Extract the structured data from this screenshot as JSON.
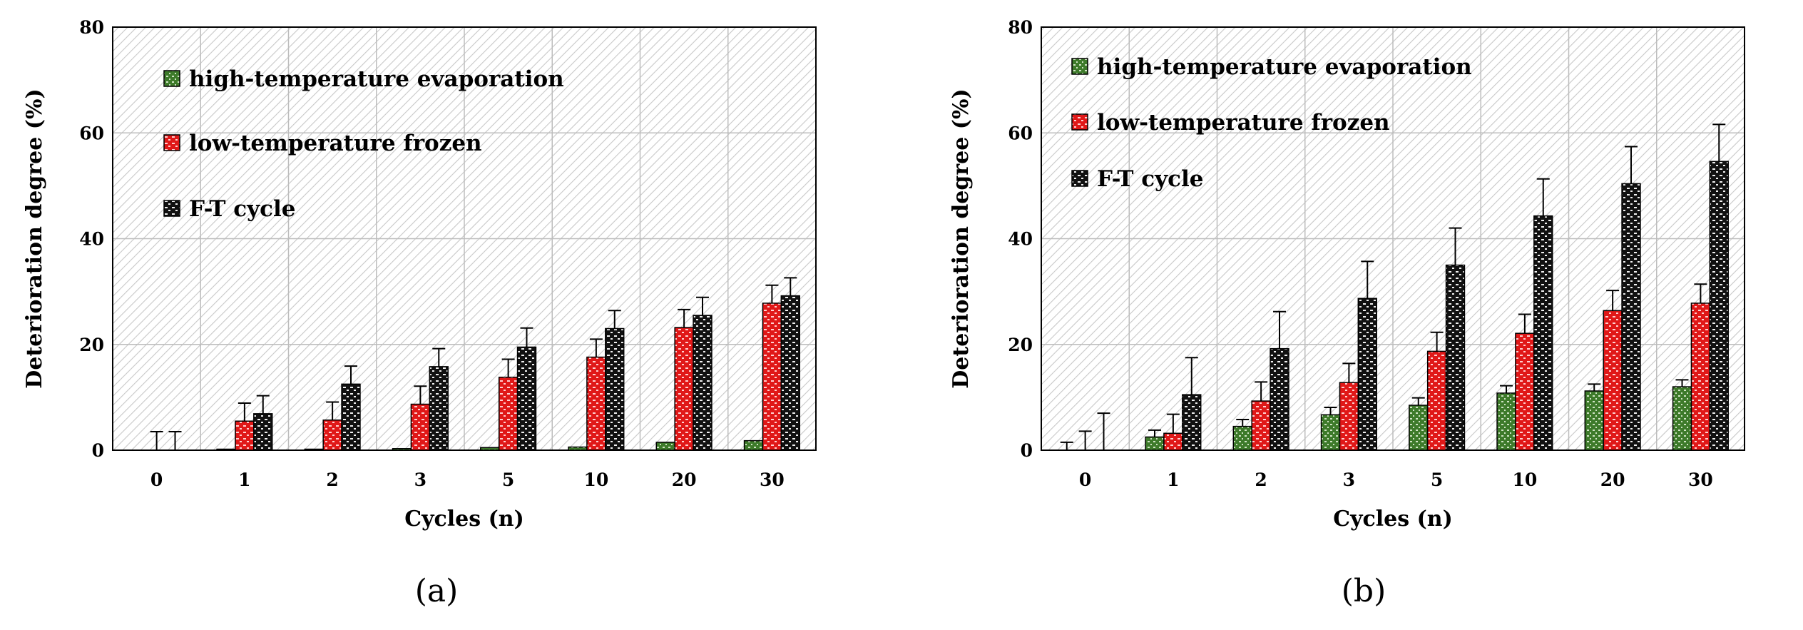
{
  "chart_data": [
    {
      "type": "bar",
      "panel_label": "(a)",
      "xlabel": "Cycles (n)",
      "ylabel": "Deterioration degree (%)",
      "ylim": [
        0,
        80
      ],
      "yticks": [
        0,
        20,
        40,
        60,
        80
      ],
      "categories": [
        "0",
        "1",
        "2",
        "3",
        "5",
        "10",
        "20",
        "30"
      ],
      "grid": true,
      "legend_position": "top-left",
      "series": [
        {
          "name": "high-temperature evaporation",
          "color": "#3d7a2a",
          "values": [
            0,
            0.2,
            0.2,
            0.3,
            0.5,
            0.6,
            1.5,
            1.8
          ],
          "errors": [
            0,
            0,
            0,
            0,
            0,
            0,
            0,
            0
          ]
        },
        {
          "name": "low-temperature frozen",
          "color": "#e01818",
          "values": [
            0,
            5.5,
            5.7,
            8.7,
            13.8,
            17.6,
            23.2,
            27.8
          ],
          "errors": [
            3.5,
            3.4,
            3.4,
            3.4,
            3.4,
            3.4,
            3.4,
            3.4
          ]
        },
        {
          "name": "F-T cycle",
          "color": "#111111",
          "values": [
            0,
            6.9,
            12.5,
            15.8,
            19.5,
            23.0,
            25.5,
            29.2
          ],
          "errors": [
            3.5,
            3.4,
            3.4,
            3.4,
            3.6,
            3.4,
            3.4,
            3.4
          ]
        }
      ]
    },
    {
      "type": "bar",
      "panel_label": "(b)",
      "xlabel": "Cycles (n)",
      "ylabel": "Deterioration degree (%)",
      "ylim": [
        0,
        80
      ],
      "yticks": [
        0,
        20,
        40,
        60,
        80
      ],
      "categories": [
        "0",
        "1",
        "2",
        "3",
        "5",
        "10",
        "20",
        "30"
      ],
      "grid": true,
      "legend_position": "top-left",
      "series": [
        {
          "name": "high-temperature evaporation",
          "color": "#3d7a2a",
          "values": [
            0,
            2.5,
            4.5,
            6.7,
            8.5,
            10.8,
            11.2,
            12.0
          ],
          "errors": [
            1.5,
            1.3,
            1.3,
            1.4,
            1.4,
            1.4,
            1.3,
            1.3
          ]
        },
        {
          "name": "low-temperature frozen",
          "color": "#e01818",
          "values": [
            0,
            3.2,
            9.3,
            12.8,
            18.7,
            22.1,
            26.4,
            27.8
          ],
          "errors": [
            3.6,
            3.6,
            3.6,
            3.6,
            3.6,
            3.6,
            3.8,
            3.6
          ]
        },
        {
          "name": "F-T cycle",
          "color": "#111111",
          "values": [
            0,
            10.5,
            19.2,
            28.7,
            35.0,
            44.3,
            50.4,
            54.6
          ],
          "errors": [
            7.0,
            7.0,
            7.0,
            7.0,
            7.0,
            7.0,
            7.0,
            7.0
          ]
        }
      ]
    }
  ]
}
